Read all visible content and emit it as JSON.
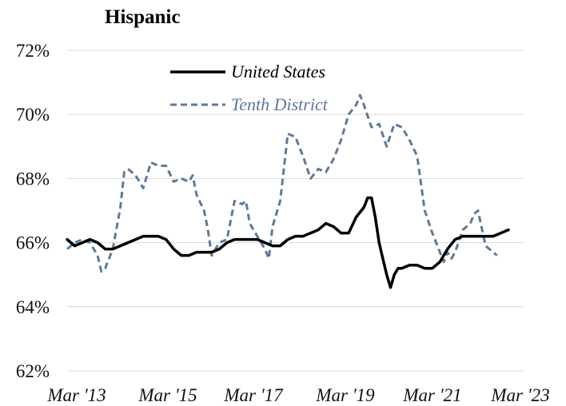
{
  "chart_data": {
    "type": "line",
    "title": "Hispanic",
    "xlabel": "",
    "ylabel": "",
    "ylim": [
      62,
      72
    ],
    "yticks": [
      "62%",
      "64%",
      "66%",
      "68%",
      "70%",
      "72%"
    ],
    "ytick_values": [
      62,
      64,
      66,
      68,
      70,
      72
    ],
    "xticks": [
      "Mar '13",
      "Mar '15",
      "Mar '17",
      "Mar '19",
      "Mar '21",
      "Mar '23"
    ],
    "xtick_months": [
      0,
      24,
      48,
      72,
      96,
      120
    ],
    "grid": true,
    "legend_position": "top-center",
    "x_unit": "months since Mar '13",
    "series": [
      {
        "name": "United States",
        "color": "#000000",
        "style": "solid",
        "points": [
          [
            0,
            66.1
          ],
          [
            2,
            65.9
          ],
          [
            4,
            66.0
          ],
          [
            6,
            66.1
          ],
          [
            8,
            66.0
          ],
          [
            10,
            65.8
          ],
          [
            12,
            65.8
          ],
          [
            14,
            65.9
          ],
          [
            16,
            66.0
          ],
          [
            18,
            66.1
          ],
          [
            20,
            66.2
          ],
          [
            22,
            66.2
          ],
          [
            24,
            66.2
          ],
          [
            26,
            66.1
          ],
          [
            28,
            65.8
          ],
          [
            30,
            65.6
          ],
          [
            32,
            65.6
          ],
          [
            34,
            65.7
          ],
          [
            36,
            65.7
          ],
          [
            38,
            65.7
          ],
          [
            40,
            65.8
          ],
          [
            42,
            66.0
          ],
          [
            44,
            66.1
          ],
          [
            46,
            66.1
          ],
          [
            48,
            66.1
          ],
          [
            50,
            66.1
          ],
          [
            52,
            66.0
          ],
          [
            54,
            65.9
          ],
          [
            56,
            65.9
          ],
          [
            58,
            66.1
          ],
          [
            60,
            66.2
          ],
          [
            62,
            66.2
          ],
          [
            64,
            66.3
          ],
          [
            66,
            66.4
          ],
          [
            68,
            66.6
          ],
          [
            70,
            66.5
          ],
          [
            72,
            66.3
          ],
          [
            74,
            66.3
          ],
          [
            76,
            66.8
          ],
          [
            78,
            67.1
          ],
          [
            79,
            67.4
          ],
          [
            80,
            67.4
          ],
          [
            81,
            66.8
          ],
          [
            82,
            66.0
          ],
          [
            83,
            65.5
          ],
          [
            84,
            65.0
          ],
          [
            85,
            64.6
          ],
          [
            86,
            65.0
          ],
          [
            87,
            65.2
          ],
          [
            88,
            65.2
          ],
          [
            90,
            65.3
          ],
          [
            92,
            65.3
          ],
          [
            94,
            65.2
          ],
          [
            96,
            65.2
          ],
          [
            98,
            65.4
          ],
          [
            100,
            65.8
          ],
          [
            102,
            66.1
          ],
          [
            104,
            66.2
          ],
          [
            106,
            66.2
          ],
          [
            108,
            66.2
          ],
          [
            110,
            66.2
          ],
          [
            112,
            66.2
          ],
          [
            114,
            66.3
          ],
          [
            116,
            66.4
          ]
        ]
      },
      {
        "name": "Tenth District",
        "color": "#5d7a9a",
        "style": "dashed",
        "points": [
          [
            0,
            65.8
          ],
          [
            2,
            66.0
          ],
          [
            4,
            66.1
          ],
          [
            6,
            66.0
          ],
          [
            8,
            65.6
          ],
          [
            9,
            65.1
          ],
          [
            10,
            65.2
          ],
          [
            12,
            65.8
          ],
          [
            14,
            67.1
          ],
          [
            15,
            68.2
          ],
          [
            16,
            68.3
          ],
          [
            18,
            68.1
          ],
          [
            20,
            67.7
          ],
          [
            22,
            68.5
          ],
          [
            24,
            68.4
          ],
          [
            26,
            68.4
          ],
          [
            28,
            67.9
          ],
          [
            30,
            68.0
          ],
          [
            32,
            67.9
          ],
          [
            33,
            68.1
          ],
          [
            34,
            67.5
          ],
          [
            36,
            67.0
          ],
          [
            37,
            66.4
          ],
          [
            38,
            65.6
          ],
          [
            40,
            66.0
          ],
          [
            42,
            66.1
          ],
          [
            44,
            67.3
          ],
          [
            46,
            67.2
          ],
          [
            47,
            67.3
          ],
          [
            48,
            66.6
          ],
          [
            50,
            66.2
          ],
          [
            52,
            65.8
          ],
          [
            53,
            65.5
          ],
          [
            54,
            66.5
          ],
          [
            56,
            67.3
          ],
          [
            58,
            69.4
          ],
          [
            60,
            69.3
          ],
          [
            62,
            68.7
          ],
          [
            64,
            68.0
          ],
          [
            66,
            68.3
          ],
          [
            68,
            68.2
          ],
          [
            70,
            68.6
          ],
          [
            72,
            69.2
          ],
          [
            74,
            70.0
          ],
          [
            76,
            70.3
          ],
          [
            77,
            70.6
          ],
          [
            78,
            70.3
          ],
          [
            80,
            69.6
          ],
          [
            82,
            69.7
          ],
          [
            84,
            69.0
          ],
          [
            86,
            69.7
          ],
          [
            88,
            69.6
          ],
          [
            90,
            69.2
          ],
          [
            92,
            68.7
          ],
          [
            94,
            67.0
          ],
          [
            96,
            66.3
          ],
          [
            98,
            65.7
          ],
          [
            99,
            65.4
          ],
          [
            100,
            65.7
          ],
          [
            101,
            65.5
          ],
          [
            102,
            65.7
          ],
          [
            104,
            66.4
          ],
          [
            106,
            66.6
          ],
          [
            107,
            66.9
          ],
          [
            108,
            67.0
          ],
          [
            110,
            65.9
          ],
          [
            112,
            65.7
          ],
          [
            113,
            65.6
          ]
        ]
      }
    ]
  }
}
